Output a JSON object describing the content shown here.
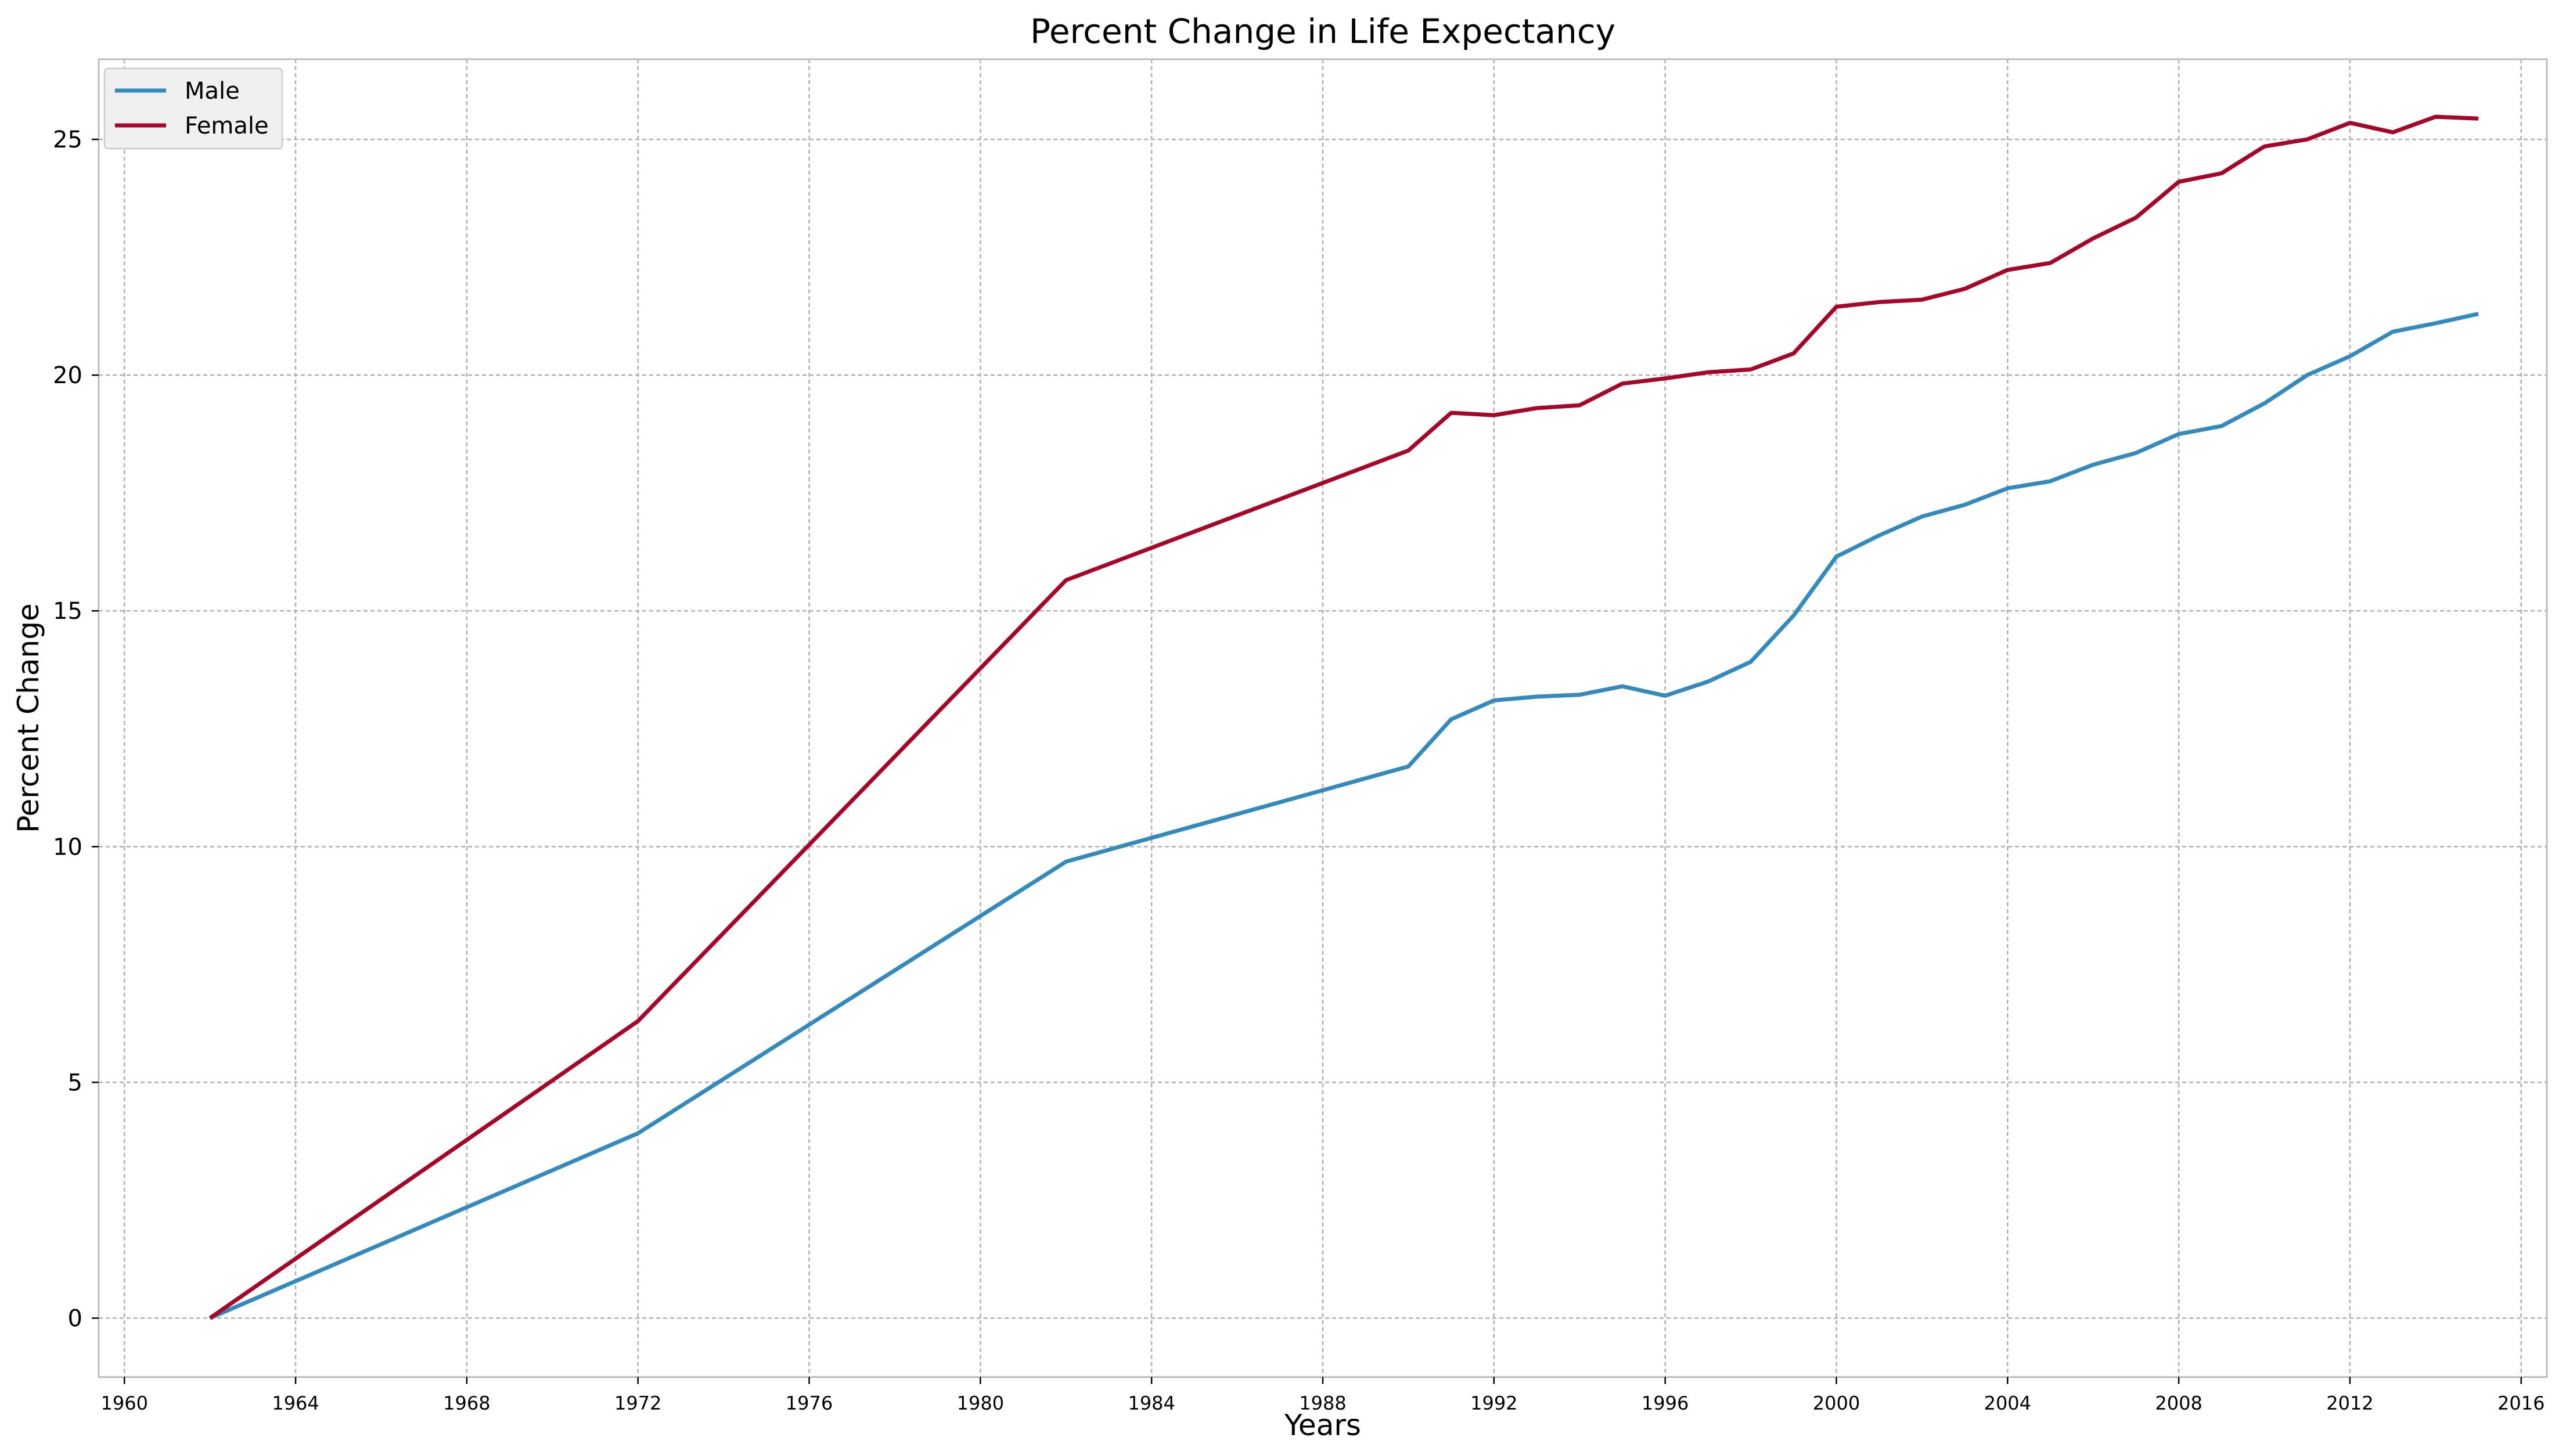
{
  "chart_data": {
    "type": "line",
    "title": "Percent Change in Life Expectancy",
    "xlabel": "Years",
    "ylabel": "Percent Change",
    "xlim": [
      1959.4,
      2016.6
    ],
    "ylim": [
      -1.25,
      26.7
    ],
    "x_ticks": [
      1960,
      1964,
      1968,
      1972,
      1976,
      1980,
      1984,
      1988,
      1992,
      1996,
      2000,
      2004,
      2008,
      2012,
      2016
    ],
    "y_ticks": [
      0,
      5,
      10,
      15,
      20,
      25
    ],
    "grid": true,
    "legend_position": "upper-left",
    "series": [
      {
        "name": "Male",
        "color": "#348abd",
        "x": [
          1962,
          1972,
          1982,
          1990,
          1991,
          1992,
          1993,
          1994,
          1995,
          1996,
          1997,
          1998,
          1999,
          2000,
          2001,
          2002,
          2003,
          2004,
          2005,
          2006,
          2007,
          2008,
          2009,
          2010,
          2011,
          2012,
          2013,
          2014,
          2015
        ],
        "values": [
          0,
          3.92,
          9.68,
          11.7,
          12.7,
          13.1,
          13.18,
          13.22,
          13.4,
          13.2,
          13.5,
          13.92,
          14.9,
          16.15,
          16.6,
          17.0,
          17.25,
          17.6,
          17.75,
          18.1,
          18.35,
          18.75,
          18.92,
          19.4,
          20.0,
          20.4,
          20.92,
          21.1,
          21.3
        ]
      },
      {
        "name": "Female",
        "color": "#a60628",
        "x": [
          1962,
          1972,
          1982,
          1990,
          1991,
          1992,
          1993,
          1994,
          1995,
          1996,
          1997,
          1998,
          1999,
          2000,
          2001,
          2002,
          2003,
          2004,
          2005,
          2006,
          2007,
          2008,
          2009,
          2010,
          2011,
          2012,
          2013,
          2014,
          2015
        ],
        "values": [
          0,
          6.3,
          15.65,
          18.4,
          19.2,
          19.15,
          19.3,
          19.36,
          19.82,
          19.93,
          20.06,
          20.12,
          20.46,
          21.45,
          21.55,
          21.6,
          21.83,
          22.23,
          22.38,
          22.9,
          23.34,
          24.1,
          24.28,
          24.85,
          25.0,
          25.35,
          25.15,
          25.48,
          25.44
        ]
      }
    ]
  }
}
